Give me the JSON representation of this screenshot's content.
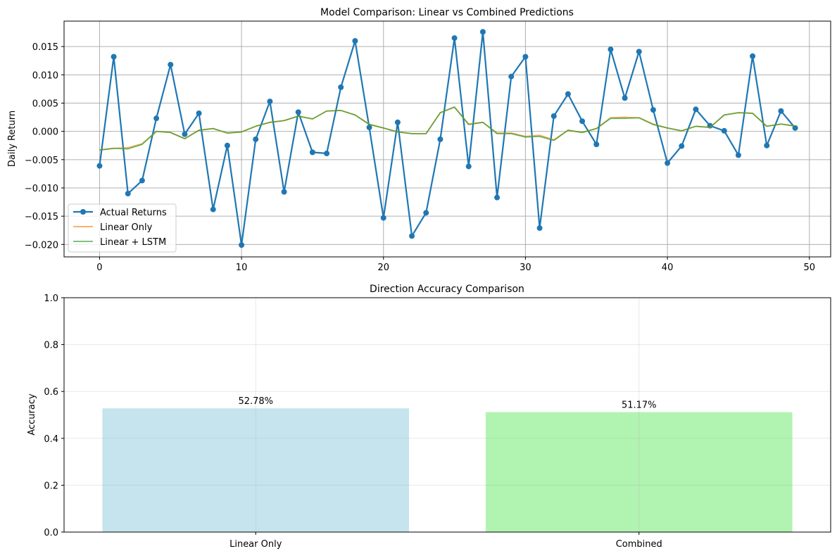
{
  "chart_data": [
    {
      "type": "line",
      "title": "Model Comparison: Linear vs Combined Predictions",
      "xlabel": "",
      "ylabel": "Daily Return",
      "xlim": [
        -2.5,
        51.5
      ],
      "ylim": [
        -0.0222,
        0.0195
      ],
      "xticks": [
        0,
        10,
        20,
        30,
        40,
        50
      ],
      "yticks": [
        -0.02,
        -0.015,
        -0.01,
        -0.005,
        0.0,
        0.005,
        0.01,
        0.015
      ],
      "ytick_labels": [
        "−0.020",
        "−0.015",
        "−0.010",
        "−0.005",
        "0.000",
        "0.005",
        "0.010",
        "0.015"
      ],
      "grid": true,
      "legend_position": "lower-left",
      "x": [
        0,
        1,
        2,
        3,
        4,
        5,
        6,
        7,
        8,
        9,
        10,
        11,
        12,
        13,
        14,
        15,
        16,
        17,
        18,
        19,
        20,
        21,
        22,
        23,
        24,
        25,
        26,
        27,
        28,
        29,
        30,
        31,
        32,
        33,
        34,
        35,
        36,
        37,
        38,
        39,
        40,
        41,
        42,
        43,
        44,
        45,
        46,
        47,
        48,
        49
      ],
      "series": [
        {
          "name": "Actual Returns",
          "color": "#1f77b4",
          "values": [
            -0.0061,
            0.0132,
            -0.011,
            -0.0087,
            0.0023,
            0.0118,
            -0.0005,
            0.0032,
            -0.0138,
            -0.0025,
            -0.0201,
            -0.0014,
            0.0053,
            -0.0107,
            0.0034,
            -0.0037,
            -0.0039,
            0.0078,
            0.016,
            0.0007,
            -0.0153,
            0.0016,
            -0.0185,
            -0.0144,
            -0.0014,
            0.0165,
            -0.0062,
            0.0176,
            -0.0117,
            0.0097,
            0.0132,
            -0.0171,
            0.0027,
            0.0066,
            0.0018,
            -0.0023,
            0.0145,
            0.0059,
            0.0141,
            0.0038,
            -0.0056,
            -0.0026,
            0.0039,
            0.001,
            0.0001,
            -0.0042,
            0.0133,
            -0.0025,
            0.0036,
            0.0006
          ]
        },
        {
          "name": "Linear Only",
          "color": "#ff7f0e",
          "values": [
            -0.0033,
            -0.003,
            -0.0029,
            -0.0022,
            0.0,
            -0.0002,
            -0.0013,
            0.0002,
            0.0005,
            -0.0003,
            -0.0001,
            0.0009,
            0.0016,
            0.0019,
            0.0027,
            0.0022,
            0.0036,
            0.0037,
            0.0029,
            0.0013,
            0.0006,
            -0.0001,
            -0.0004,
            -0.0004,
            0.0033,
            0.0043,
            0.0013,
            0.0016,
            -0.0003,
            -0.0003,
            -0.0009,
            -0.0007,
            -0.0015,
            0.0002,
            -0.0002,
            0.0005,
            0.0024,
            0.0025,
            0.0024,
            0.0013,
            0.0006,
            0.0001,
            0.0009,
            0.0007,
            0.0029,
            0.0033,
            0.0032,
            0.0009,
            0.0013,
            0.001
          ]
        },
        {
          "name": "Linear + LSTM",
          "color": "#2ca02c",
          "values": [
            -0.0033,
            -0.003,
            -0.0031,
            -0.0023,
            0.0,
            -0.0002,
            -0.0013,
            0.0002,
            0.0005,
            -0.0003,
            -0.0001,
            0.0009,
            0.0016,
            0.0019,
            0.0027,
            0.0022,
            0.0036,
            0.0037,
            0.0029,
            0.0012,
            0.0006,
            -0.0001,
            -0.0004,
            -0.0004,
            0.0033,
            0.0043,
            0.0012,
            0.0016,
            -0.0004,
            -0.0004,
            -0.001,
            -0.0009,
            -0.0016,
            0.0002,
            -0.0002,
            0.0005,
            0.0023,
            0.0023,
            0.0024,
            0.0012,
            0.0006,
            0.0001,
            0.0009,
            0.0007,
            0.0029,
            0.0033,
            0.0032,
            0.0009,
            0.0013,
            0.0009
          ]
        }
      ]
    },
    {
      "type": "bar",
      "title": "Direction Accuracy Comparison",
      "xlabel": "",
      "ylabel": "Accuracy",
      "ylim": [
        0,
        1.0
      ],
      "yticks": [
        0.0,
        0.2,
        0.4,
        0.6,
        0.8,
        1.0
      ],
      "ytick_labels": [
        "0.0",
        "0.2",
        "0.4",
        "0.6",
        "0.8",
        "1.0"
      ],
      "grid": true,
      "categories": [
        "Linear Only",
        "Combined"
      ],
      "values": [
        0.5278,
        0.5117
      ],
      "data_labels": [
        "52.78%",
        "51.17%"
      ],
      "colors": [
        "#add8e6",
        "#90ee90"
      ]
    }
  ]
}
